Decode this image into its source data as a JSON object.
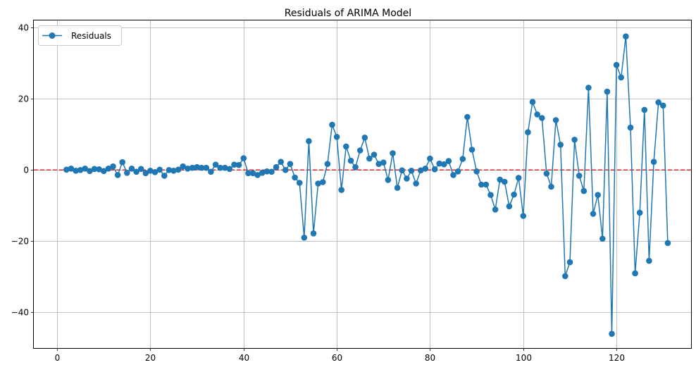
{
  "chart_data": {
    "type": "line",
    "title": "Residuals of ARIMA Model",
    "xlabel": "",
    "ylabel": "",
    "xlim": [
      -5,
      136
    ],
    "ylim": [
      -50,
      42
    ],
    "x_ticks": [
      0,
      20,
      40,
      60,
      80,
      100,
      120
    ],
    "y_ticks": [
      -40,
      -20,
      0,
      20,
      40
    ],
    "x_tick_labels": [
      "0",
      "20",
      "40",
      "60",
      "80",
      "100",
      "120"
    ],
    "y_tick_labels": [
      "−40",
      "−20",
      "0",
      "20",
      "40"
    ],
    "grid": true,
    "legend_position": "upper-left",
    "reference_line": {
      "y": 0,
      "color": "#d62728",
      "style": "dashed"
    },
    "series": [
      {
        "name": "Residuals",
        "color": "#1f77b4",
        "marker": "circle",
        "x": [
          2,
          3,
          4,
          5,
          6,
          7,
          8,
          9,
          10,
          11,
          12,
          13,
          14,
          15,
          16,
          17,
          18,
          19,
          20,
          21,
          22,
          23,
          24,
          25,
          26,
          27,
          28,
          29,
          30,
          31,
          32,
          33,
          34,
          35,
          36,
          37,
          38,
          39,
          40,
          41,
          42,
          43,
          44,
          45,
          46,
          47,
          48,
          49,
          50,
          51,
          52,
          53,
          54,
          55,
          56,
          57,
          58,
          59,
          60,
          61,
          62,
          63,
          64,
          65,
          66,
          67,
          68,
          69,
          70,
          71,
          72,
          73,
          74,
          75,
          76,
          77,
          78,
          79,
          80,
          81,
          82,
          83,
          84,
          85,
          86,
          87,
          88,
          89,
          90,
          91,
          92,
          93,
          94,
          95,
          96,
          97,
          98,
          99,
          100,
          101,
          102,
          103,
          104,
          105,
          106,
          107,
          108,
          109,
          110,
          111,
          112,
          113,
          114,
          115,
          116,
          117,
          118,
          119,
          120,
          121,
          122,
          123,
          124,
          125,
          126,
          127,
          128,
          129,
          130,
          131
        ],
        "values": [
          0.1,
          0.4,
          -0.2,
          0.0,
          0.4,
          -0.3,
          0.3,
          0.2,
          -0.3,
          0.4,
          1.0,
          -1.4,
          2.2,
          -0.8,
          0.4,
          -0.5,
          0.3,
          -0.9,
          -0.2,
          -0.6,
          0.1,
          -1.6,
          0.0,
          -0.2,
          0.1,
          1.0,
          0.4,
          0.6,
          0.8,
          0.6,
          0.6,
          -0.5,
          1.5,
          0.6,
          0.6,
          0.3,
          1.5,
          1.4,
          3.3,
          -0.9,
          -0.9,
          -1.4,
          -0.8,
          -0.4,
          -0.5,
          0.8,
          2.3,
          0.0,
          1.7,
          -2.1,
          -3.6,
          -19.0,
          8.1,
          -17.8,
          -3.8,
          -3.4,
          1.7,
          12.7,
          9.3,
          -5.6,
          6.6,
          2.6,
          0.8,
          5.5,
          9.1,
          3.2,
          4.3,
          1.7,
          2.1,
          -2.8,
          4.7,
          -5.0,
          -0.1,
          -2.4,
          -0.2,
          -3.8,
          -0.1,
          0.4,
          3.2,
          0.2,
          1.8,
          1.6,
          2.5,
          -1.4,
          -0.4,
          3.1,
          14.9,
          5.7,
          -0.4,
          -4.1,
          -4.1,
          -7.0,
          -11.1,
          -2.7,
          -3.3,
          -10.2,
          -6.9,
          -2.2,
          -12.9,
          10.6,
          19.1,
          15.6,
          14.6,
          -1.0,
          -4.7,
          14.0,
          7.1,
          -29.8,
          -25.9,
          8.5,
          -1.6,
          -5.9,
          23.1,
          -12.3,
          -7.0,
          -19.3,
          22.0,
          -46.0,
          29.5,
          26.0,
          37.5,
          11.9,
          -29.0,
          -12.0,
          16.9,
          -25.5,
          2.3,
          19.0,
          18.1,
          -20.5
        ]
      }
    ]
  }
}
